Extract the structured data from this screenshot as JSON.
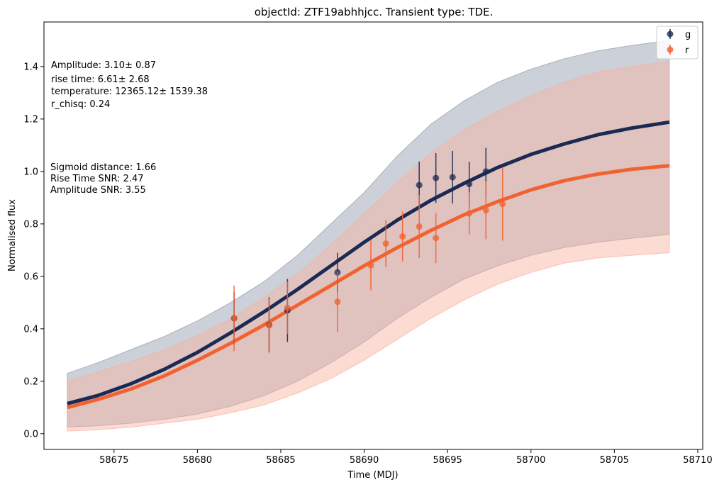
{
  "chart_data": {
    "type": "scatter",
    "title": "objectId: ZTF19abhhjcc. Transient type: TDE.",
    "xlabel": "Time (MDJ)",
    "ylabel": "Normalised flux",
    "xlim": [
      58670.8,
      58710.3
    ],
    "ylim": [
      -0.06,
      1.57
    ],
    "xticks": [
      58675,
      58680,
      58685,
      58690,
      58695,
      58700,
      58705,
      58710
    ],
    "yticks": [
      0.0,
      0.2,
      0.4,
      0.6,
      0.8,
      1.0,
      1.2,
      1.4
    ],
    "grid": false,
    "legend_position": "top-right",
    "annotations": {
      "fit_params": [
        "Amplitude: 3.10± 0.87",
        "rise time: 6.61± 2.68",
        "temperature: 12365.12± 1539.38",
        "r_chisq: 0.24"
      ],
      "snr": [
        "Sigmoid distance: 1.66",
        "Rise Time SNR: 2.47",
        "Amplitude SNR: 3.55"
      ]
    },
    "series": [
      {
        "name": "g",
        "color": "#1a2a52",
        "band_color": "#8e9aab",
        "curve": {
          "x": [
            58672.2,
            58674,
            58676,
            58678,
            58680,
            58682,
            58684,
            58686,
            58688,
            58690,
            58692,
            58694,
            58696,
            58698,
            58700,
            58702,
            58704,
            58706,
            58708.3
          ],
          "y": [
            0.115,
            0.145,
            0.19,
            0.245,
            0.31,
            0.385,
            0.465,
            0.55,
            0.64,
            0.73,
            0.815,
            0.89,
            0.955,
            1.015,
            1.065,
            1.105,
            1.14,
            1.165,
            1.188
          ]
        },
        "band": {
          "x": [
            58672.2,
            58674,
            58676,
            58678,
            58680,
            58682,
            58684,
            58686,
            58688,
            58690,
            58692,
            58694,
            58696,
            58698,
            58700,
            58702,
            58704,
            58706,
            58708.3
          ],
          "upper": [
            0.23,
            0.27,
            0.32,
            0.37,
            0.43,
            0.5,
            0.58,
            0.68,
            0.8,
            0.92,
            1.06,
            1.18,
            1.27,
            1.34,
            1.39,
            1.43,
            1.46,
            1.48,
            1.5
          ],
          "lower": [
            0.025,
            0.03,
            0.04,
            0.055,
            0.075,
            0.105,
            0.145,
            0.2,
            0.27,
            0.35,
            0.44,
            0.52,
            0.59,
            0.64,
            0.68,
            0.71,
            0.73,
            0.745,
            0.76
          ]
        },
        "points": [
          {
            "x": 58682.2,
            "y": 0.44,
            "err": 0.1
          },
          {
            "x": 58684.3,
            "y": 0.415,
            "err": 0.105
          },
          {
            "x": 58685.4,
            "y": 0.47,
            "err": 0.12
          },
          {
            "x": 58688.4,
            "y": 0.615,
            "err": 0.075
          },
          {
            "x": 58693.3,
            "y": 0.948,
            "err": 0.09
          },
          {
            "x": 58694.3,
            "y": 0.975,
            "err": 0.095
          },
          {
            "x": 58695.3,
            "y": 0.978,
            "err": 0.1
          },
          {
            "x": 58696.3,
            "y": 0.952,
            "err": 0.085
          },
          {
            "x": 58697.3,
            "y": 1.0,
            "err": 0.09
          }
        ]
      },
      {
        "name": "r",
        "color": "#f26230",
        "band_color": "#f9b09d",
        "curve": {
          "x": [
            58672.2,
            58674,
            58676,
            58678,
            58680,
            58682,
            58684,
            58686,
            58688,
            58690,
            58692,
            58694,
            58696,
            58698,
            58700,
            58702,
            58704,
            58706,
            58708.3
          ],
          "y": [
            0.1,
            0.13,
            0.17,
            0.22,
            0.28,
            0.345,
            0.415,
            0.49,
            0.565,
            0.64,
            0.71,
            0.775,
            0.835,
            0.885,
            0.93,
            0.965,
            0.99,
            1.008,
            1.022
          ]
        },
        "band": {
          "x": [
            58672.2,
            58674,
            58676,
            58678,
            58680,
            58682,
            58684,
            58686,
            58688,
            58690,
            58692,
            58694,
            58696,
            58698,
            58700,
            58702,
            58704,
            58706,
            58708.3
          ],
          "upper": [
            0.2,
            0.235,
            0.275,
            0.32,
            0.375,
            0.44,
            0.52,
            0.61,
            0.72,
            0.84,
            0.96,
            1.07,
            1.16,
            1.23,
            1.29,
            1.34,
            1.38,
            1.4,
            1.42
          ],
          "lower": [
            0.01,
            0.015,
            0.025,
            0.04,
            0.055,
            0.08,
            0.11,
            0.155,
            0.21,
            0.28,
            0.36,
            0.44,
            0.51,
            0.57,
            0.615,
            0.65,
            0.67,
            0.68,
            0.69
          ]
        },
        "points": [
          {
            "x": 58682.2,
            "y": 0.44,
            "err": 0.125
          },
          {
            "x": 58684.3,
            "y": 0.413,
            "err": 0.1
          },
          {
            "x": 58685.4,
            "y": 0.48,
            "err": 0.1
          },
          {
            "x": 58688.4,
            "y": 0.503,
            "err": 0.115
          },
          {
            "x": 58690.4,
            "y": 0.642,
            "err": 0.095
          },
          {
            "x": 58691.3,
            "y": 0.725,
            "err": 0.09
          },
          {
            "x": 58692.3,
            "y": 0.752,
            "err": 0.095
          },
          {
            "x": 58693.3,
            "y": 0.79,
            "err": 0.12
          },
          {
            "x": 58694.3,
            "y": 0.746,
            "err": 0.095
          },
          {
            "x": 58696.3,
            "y": 0.84,
            "err": 0.08
          },
          {
            "x": 58697.3,
            "y": 0.852,
            "err": 0.11
          },
          {
            "x": 58698.3,
            "y": 0.876,
            "err": 0.14
          }
        ]
      }
    ]
  }
}
